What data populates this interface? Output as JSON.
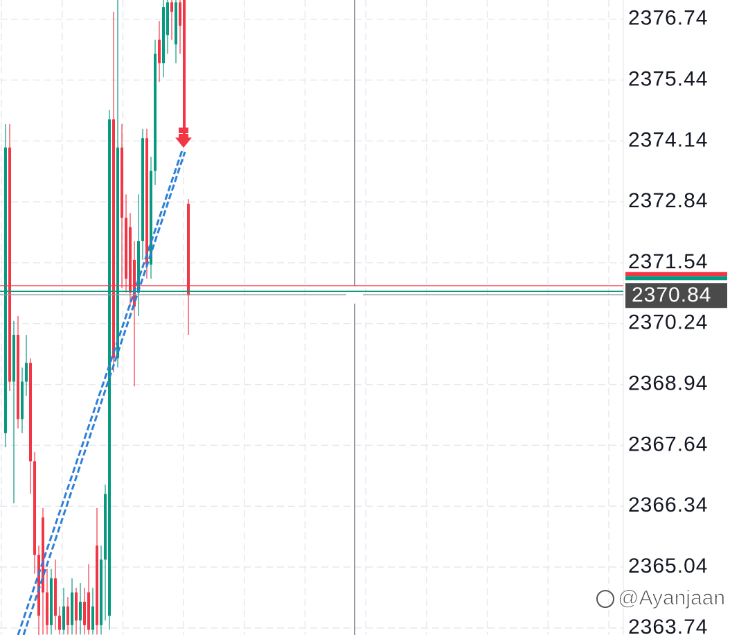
{
  "chart_data": {
    "type": "candlestick",
    "up_color": "#089981",
    "down_color": "#f23645",
    "ylim": [
      2363.59,
      2377.15
    ],
    "yticks": [
      2376.74,
      2375.44,
      2374.14,
      2372.84,
      2371.54,
      2370.24,
      2368.94,
      2367.64,
      2366.34,
      2365.04,
      2363.74
    ],
    "grid": true,
    "last_price": 2370.84,
    "watermark": "@Ayanjaan",
    "open": [
      2367.9,
      2374.0,
      2369.0,
      2370.0,
      2368.2,
      2369.0,
      2369.4,
      2367.3,
      2365.3,
      2366.1,
      2364.5,
      2363.8,
      2364.8,
      2364.0,
      2363.7,
      2364.2,
      2363.8,
      2364.5,
      2363.9,
      2364.3,
      2364.5,
      2363.7,
      2365.5,
      2363.8,
      2365.2,
      2364.0,
      2374.6,
      2369.5,
      2374.0,
      2372.5,
      2372.3,
      2371.6,
      2370.9,
      2372.0,
      2374.2,
      2371.5,
      2373.5,
      2376.3,
      2375.8,
      2376.4,
      2377.1,
      2376.2,
      2377.1,
      2377.15,
      2372.8
    ],
    "high": [
      2374.5,
      2374.5,
      2370.3,
      2370.4,
      2369.3,
      2370.0,
      2369.5,
      2367.5,
      2365.5,
      2366.3,
      2365.0,
      2365.0,
      2365.2,
      2364.2,
      2364.6,
      2364.4,
      2364.8,
      2364.6,
      2364.7,
      2364.6,
      2365.1,
      2364.6,
      2366.3,
      2365.5,
      2366.8,
      2374.8,
      2376.9,
      2377.15,
      2374.5,
      2373.0,
      2372.6,
      2372.0,
      2373.0,
      2374.4,
      2374.4,
      2373.8,
      2376.3,
      2376.7,
      2377.15,
      2377.15,
      2377.15,
      2377.15,
      2377.15,
      2377.15,
      2372.9
    ],
    "low": [
      2367.6,
      2368.8,
      2366.4,
      2368.0,
      2367.9,
      2368.7,
      2366.6,
      2364.9,
      2363.5,
      2363.6,
      2363.6,
      2363.6,
      2363.7,
      2363.6,
      2363.6,
      2363.6,
      2363.6,
      2363.6,
      2363.6,
      2363.6,
      2363.6,
      2363.6,
      2363.6,
      2363.6,
      2363.9,
      2363.7,
      2369.2,
      2369.3,
      2371.0,
      2370.9,
      2370.6,
      2368.9,
      2370.4,
      2371.6,
      2371.2,
      2371.2,
      2373.2,
      2375.4,
      2375.5,
      2376.0,
      2376.3,
      2375.8,
      2376.0,
      2374.0,
      2370.0
    ],
    "close": [
      2374.0,
      2369.0,
      2370.0,
      2368.2,
      2369.0,
      2369.4,
      2367.3,
      2365.3,
      2364.0,
      2364.5,
      2363.8,
      2364.8,
      2364.0,
      2363.7,
      2364.2,
      2363.8,
      2364.5,
      2363.9,
      2364.3,
      2363.8,
      2363.7,
      2364.2,
      2363.8,
      2365.2,
      2366.6,
      2374.6,
      2369.5,
      2374.0,
      2372.5,
      2371.2,
      2370.9,
      2370.6,
      2372.0,
      2374.2,
      2371.5,
      2373.5,
      2376.0,
      2375.8,
      2377.0,
      2377.1,
      2376.9,
      2377.1,
      2376.6,
      2374.1,
      2370.84
    ]
  }
}
